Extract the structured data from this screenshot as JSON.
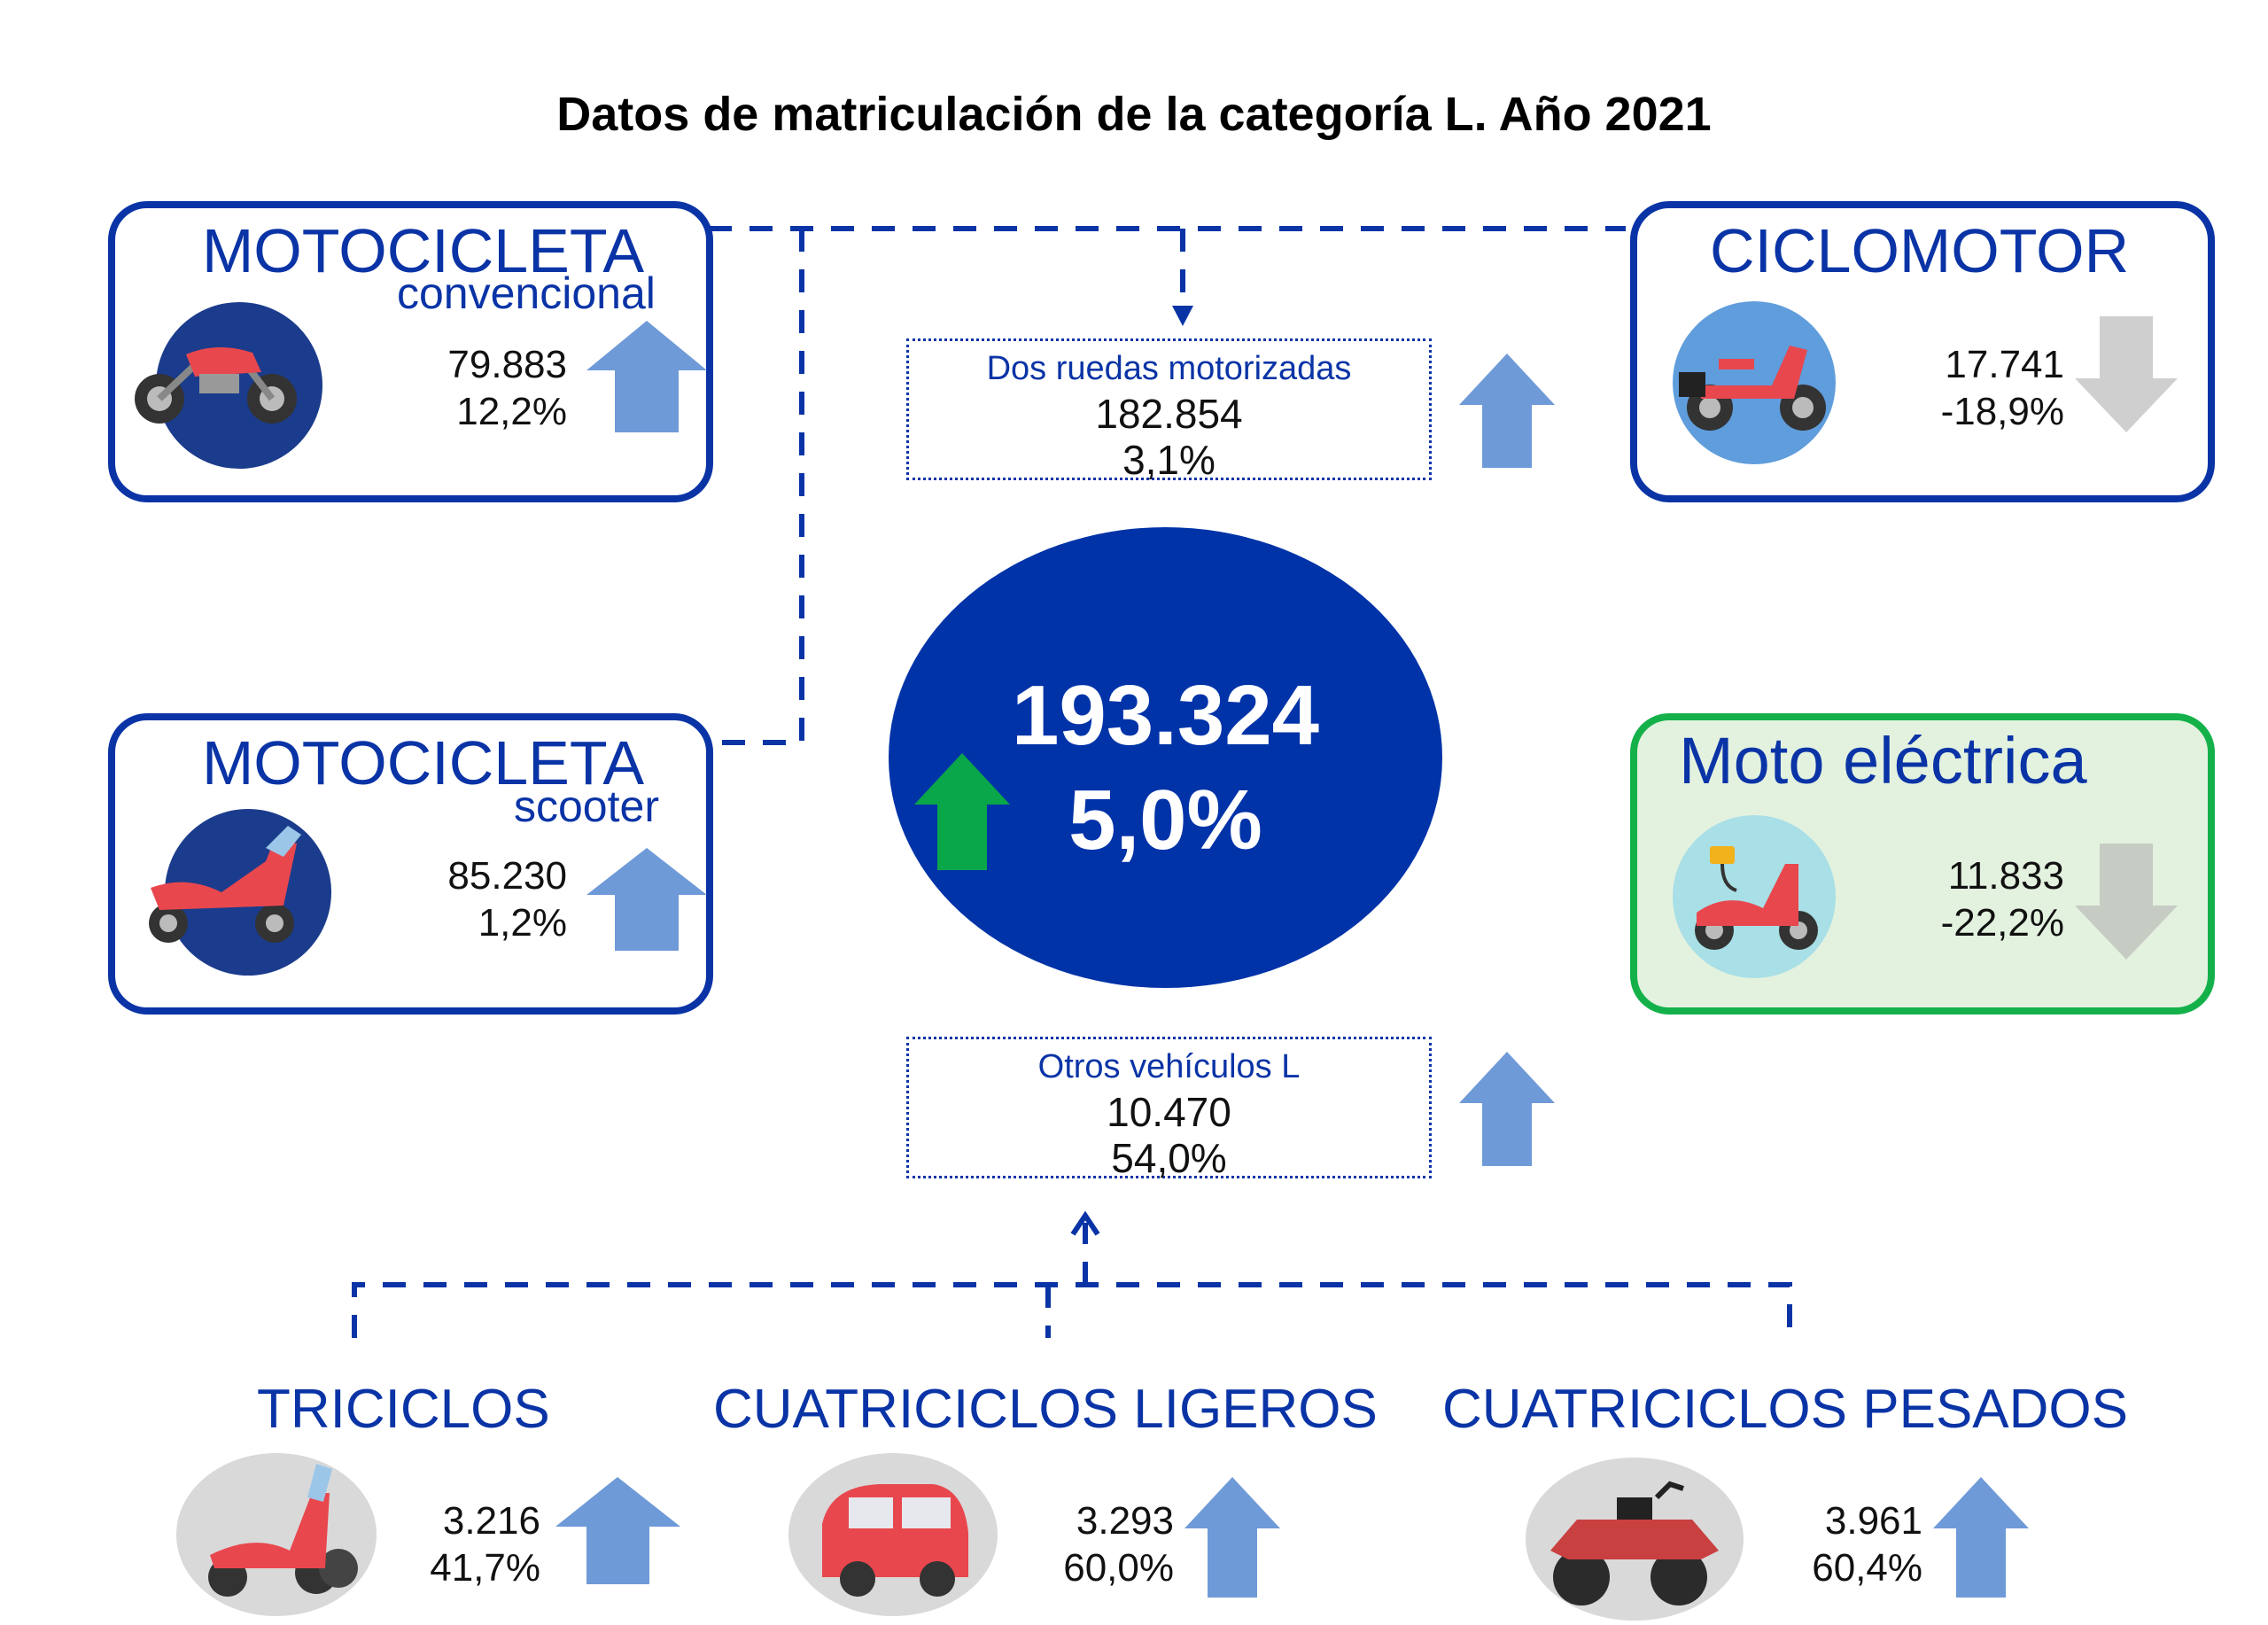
{
  "title": "Datos de matriculación de la categoría L. Año 2021",
  "total": {
    "value": "193.324",
    "change": "5,0%",
    "trend": "up",
    "arrow_color": "#0aa64a"
  },
  "dos_ruedas": {
    "label": "Dos ruedas motorizadas",
    "value": "182.854",
    "change": "3,1%",
    "trend": "up"
  },
  "otros": {
    "label": "Otros vehículos L",
    "value": "10.470",
    "change": "54,0%",
    "trend": "up"
  },
  "moto_convencional": {
    "title": "MOTOCICLETA",
    "subtitle": "convencional",
    "value": "79.883",
    "change": "12,2%",
    "trend": "up",
    "icon": "motorcycle-icon"
  },
  "moto_scooter": {
    "title": "MOTOCICLETA",
    "subtitle": "scooter",
    "value": "85.230",
    "change": "1,2%",
    "trend": "up",
    "icon": "scooter-icon"
  },
  "ciclomotor": {
    "title": "CICLOMOTOR",
    "value": "17.741",
    "change": "-18,9%",
    "trend": "down",
    "icon": "moped-icon"
  },
  "moto_electrica": {
    "title": "Moto eléctrica",
    "value": "11.833",
    "change": "-22,2%",
    "trend": "down",
    "icon": "electric-scooter-icon"
  },
  "triciclos": {
    "title": "TRICICLOS",
    "value": "3.216",
    "change": "41,7%",
    "trend": "up",
    "icon": "tricycle-icon"
  },
  "cuatriciclos_ligeros": {
    "title": "CUATRICICLOS LIGEROS",
    "value": "3.293",
    "change": "60,0%",
    "trend": "up",
    "icon": "microcar-icon"
  },
  "cuatriciclos_pesados": {
    "title": "CUATRICICLOS PESADOS",
    "value": "3.961",
    "change": "60,4%",
    "trend": "up",
    "icon": "quad-icon"
  },
  "colors": {
    "primary": "#0a34a6",
    "up_arrow": "#6f9ad8",
    "down_arrow": "#cfcfcf",
    "green_border": "#14b14b",
    "green_fill": "#e3f2df"
  }
}
